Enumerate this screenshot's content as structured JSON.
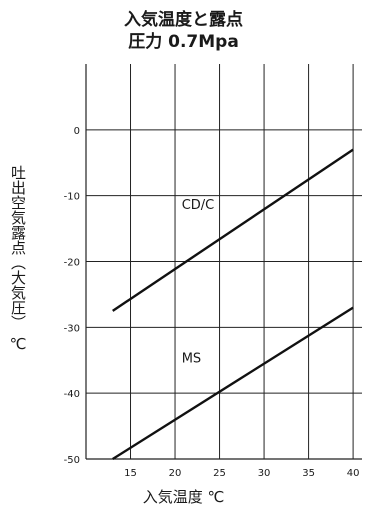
{
  "chart_data": {
    "type": "line",
    "title": "入気温度と露点",
    "subtitle": "圧力 0.7Mpa",
    "xlabel": "入気温度 ℃",
    "ylabel": "吐出空気露点（大気圧） ℃",
    "xlim": [
      10,
      41
    ],
    "ylim": [
      -50,
      10
    ],
    "xticks": [
      15,
      20,
      25,
      30,
      35,
      40
    ],
    "yticks": [
      0,
      -10,
      -20,
      -30,
      -40,
      -50
    ],
    "grid": true,
    "series": [
      {
        "name": "CD/C",
        "x": [
          13,
          40
        ],
        "y": [
          -27.5,
          -3
        ]
      },
      {
        "name": "MS",
        "x": [
          13,
          40
        ],
        "y": [
          -50,
          -27
        ]
      }
    ]
  }
}
